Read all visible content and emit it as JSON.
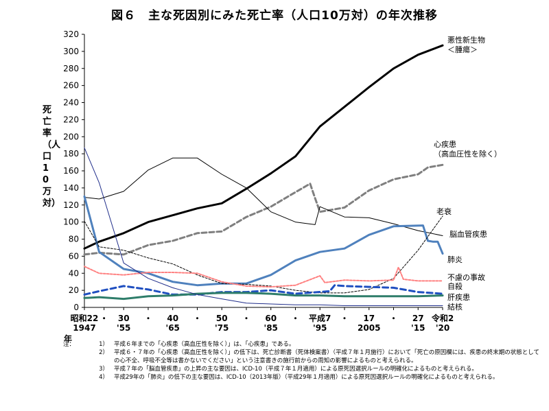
{
  "title": "図６　主な死因別にみた死亡率（人口10万対）の年次推移",
  "ylabel": "死亡率（人口10万対）",
  "notes_label": "注：",
  "notes": [
    {
      "num": "1）",
      "text": "平成６年までの「心疾患（高血圧性を除く）」は、「心疾患」である。"
    },
    {
      "num": "2）",
      "text": "平成６・７年の「心疾患（高血圧性を除く）」の低下は、死亡診断書（死体検案書）（平成７年１月施行）において「死亡の原因欄には、疾患の終末期の状態としての心不全、呼吸不全等は書かないでください」という注意書きの施行前からの周知の影響によるものと考えられる。"
    },
    {
      "num": "3）",
      "text": "平成７年の「脳血管疾患」の上昇の主な要因は、ICD-10（平成７年１月適用）による原死因選択ルールの明確化によるものと考えられる。"
    },
    {
      "num": "4）",
      "text": "平成29年の「肺炎」の低下の主な要因は、ICD-10（2013年版）（平成29年１月適用）による原死因選択ルールの明確化によるものと考えられる。"
    }
  ],
  "chart_data": {
    "type": "line",
    "ylim": [
      0,
      320
    ],
    "yticks": [
      0,
      20,
      40,
      60,
      80,
      100,
      120,
      140,
      160,
      180,
      200,
      220,
      240,
      260,
      280,
      300,
      320
    ],
    "xlim": [
      1947,
      2020
    ],
    "grid": false,
    "xlabel": "年",
    "xticks_era": [
      {
        "x": 1947,
        "label": "昭和22"
      },
      {
        "x": 1951,
        "label": "・"
      },
      {
        "x": 1955,
        "label": "30"
      },
      {
        "x": 1960,
        "label": "・"
      },
      {
        "x": 1965,
        "label": "40"
      },
      {
        "x": 1970,
        "label": "・"
      },
      {
        "x": 1975,
        "label": "50"
      },
      {
        "x": 1980,
        "label": "・"
      },
      {
        "x": 1985,
        "label": "60"
      },
      {
        "x": 1990,
        "label": "・"
      },
      {
        "x": 1995,
        "label": "平成7"
      },
      {
        "x": 2000,
        "label": "・"
      },
      {
        "x": 2005,
        "label": "17"
      },
      {
        "x": 2010,
        "label": "・"
      },
      {
        "x": 2015,
        "label": "27"
      },
      {
        "x": 2020,
        "label": "令和2"
      }
    ],
    "xticks_ad": [
      {
        "x": 1947,
        "label": "1947"
      },
      {
        "x": 1955,
        "label": "'55"
      },
      {
        "x": 1965,
        "label": "'65"
      },
      {
        "x": 1975,
        "label": "'75"
      },
      {
        "x": 1985,
        "label": "'85"
      },
      {
        "x": 1995,
        "label": "'95"
      },
      {
        "x": 2005,
        "label": "2005"
      },
      {
        "x": 2015,
        "label": "'15"
      },
      {
        "x": 2020,
        "label": "'20"
      }
    ],
    "series": [
      {
        "name": "悪性新生物\n＜腫瘍＞",
        "color": "#000000",
        "width": 3,
        "dash": "",
        "x": [
          1947,
          1950,
          1955,
          1960,
          1965,
          1970,
          1975,
          1980,
          1985,
          1990,
          1995,
          2000,
          2005,
          2010,
          2015,
          2020
        ],
        "values": [
          69,
          77,
          87,
          100,
          108,
          116,
          122,
          139,
          157,
          177,
          212,
          235,
          258,
          280,
          296,
          307
        ]
      },
      {
        "name": "心疾患\n（高血圧性を除く）",
        "color": "#7f7f7f",
        "width": 3,
        "dash": "7,4",
        "x": [
          1947,
          1950,
          1955,
          1960,
          1965,
          1970,
          1975,
          1980,
          1985,
          1990,
          1993,
          1994,
          1995,
          2000,
          2005,
          2010,
          2015,
          2017,
          2020
        ],
        "values": [
          62,
          64,
          62,
          73,
          78,
          87,
          89,
          106,
          118,
          135,
          145,
          128,
          112,
          117,
          137,
          150,
          156,
          164,
          167
        ]
      },
      {
        "name": "脳血管疾患",
        "color": "#000000",
        "width": 1,
        "dash": "",
        "x": [
          1947,
          1950,
          1955,
          1960,
          1965,
          1970,
          1975,
          1980,
          1985,
          1990,
          1994,
          1995,
          2000,
          2005,
          2010,
          2015,
          2020
        ],
        "values": [
          129,
          127,
          136,
          161,
          175,
          175,
          156,
          140,
          112,
          100,
          97,
          118,
          106,
          105,
          98,
          90,
          84
        ]
      },
      {
        "name": "肺炎",
        "color": "#4f81bd",
        "width": 3,
        "dash": "",
        "x": [
          1947,
          1950,
          1955,
          1960,
          1965,
          1970,
          1975,
          1980,
          1985,
          1990,
          1995,
          2000,
          2005,
          2010,
          2016,
          2017,
          2018,
          2019,
          2020
        ],
        "values": [
          130,
          65,
          45,
          40,
          30,
          26,
          28,
          28,
          38,
          55,
          65,
          69,
          85,
          95,
          96,
          78,
          77,
          77,
          63
        ]
      },
      {
        "name": "老衰",
        "color": "#000000",
        "width": 1,
        "dash": "3,2",
        "x": [
          1947,
          1950,
          1955,
          1960,
          1965,
          1970,
          1975,
          1980,
          1985,
          1990,
          1995,
          2000,
          2005,
          2010,
          2015,
          2020
        ],
        "values": [
          101,
          71,
          67,
          58,
          51,
          38,
          28,
          27,
          25,
          20,
          17,
          17,
          21,
          34,
          67,
          107
        ]
      },
      {
        "name": "不慮の事故",
        "color": "#ff8080",
        "width": 2,
        "dash": "3,2",
        "x": [
          1947,
          1950,
          1955,
          1960,
          1965,
          1970,
          1975,
          1980,
          1985,
          1990,
          1995,
          1996,
          2000,
          2005,
          2010,
          2011,
          2012,
          2015,
          2020
        ],
        "values": [
          48,
          40,
          38,
          41,
          41,
          40,
          30,
          25,
          24,
          26,
          37,
          29,
          32,
          31,
          32,
          47,
          33,
          31,
          31
        ]
      },
      {
        "name": "自殺",
        "color": "#1f4fc0",
        "width": 3,
        "dash": "8,5",
        "x": [
          1947,
          1950,
          1955,
          1960,
          1965,
          1970,
          1975,
          1980,
          1985,
          1990,
          1997,
          1998,
          2000,
          2005,
          2010,
          2015,
          2020
        ],
        "values": [
          15,
          19,
          25,
          21,
          15,
          15,
          18,
          18,
          20,
          16,
          19,
          26,
          25,
          24,
          23,
          18,
          16
        ]
      },
      {
        "name": "肝疾患",
        "color": "#2e7d6a",
        "width": 3,
        "dash": "",
        "x": [
          1947,
          1950,
          1955,
          1960,
          1965,
          1970,
          1975,
          1980,
          1985,
          1990,
          1995,
          2000,
          2005,
          2010,
          2015,
          2020
        ],
        "values": [
          11,
          12,
          10,
          13,
          14,
          16,
          17,
          17,
          16,
          14,
          14,
          13,
          13,
          13,
          13,
          14
        ]
      },
      {
        "name": "結核",
        "color": "#1f2d8a",
        "width": 1,
        "dash": "",
        "x": [
          1947,
          1950,
          1955,
          1960,
          1965,
          1970,
          1975,
          1980,
          1985,
          1990,
          1995,
          2000,
          2010,
          2020
        ],
        "values": [
          187,
          146,
          52,
          34,
          23,
          15,
          10,
          5,
          4,
          3,
          3,
          2,
          2,
          2
        ]
      }
    ]
  }
}
